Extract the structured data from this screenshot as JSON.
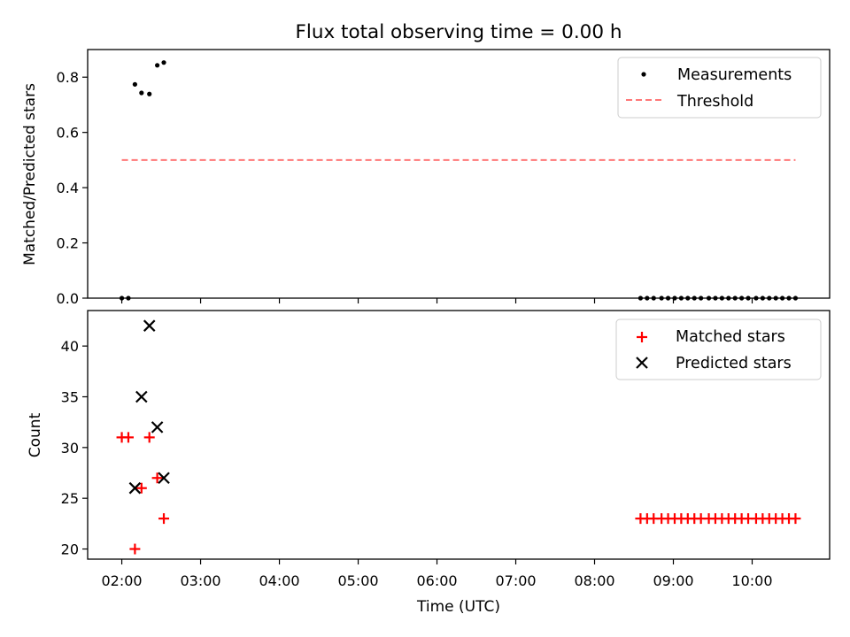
{
  "title": "Flux total observing time = 0.00 h",
  "chart_data": [
    {
      "type": "scatter",
      "ylabel": "Matched/Predicted stars",
      "ylim": [
        0,
        0.9
      ],
      "yticks": [
        "0.0",
        "0.2",
        "0.4",
        "0.6",
        "0.8"
      ],
      "legend_position": "top-right",
      "series": [
        {
          "name": "Measurements",
          "marker": "dot",
          "color": "#000000",
          "points": [
            [
              "02:00",
              0
            ],
            [
              "02:05",
              0
            ],
            [
              "02:10",
              0.774
            ],
            [
              "02:15",
              0.743
            ],
            [
              "02:21",
              0.739
            ],
            [
              "02:27",
              0.843
            ],
            [
              "02:32",
              0.853
            ],
            [
              "08:35",
              0
            ],
            [
              "08:40",
              0
            ],
            [
              "08:45",
              0
            ],
            [
              "08:51",
              0
            ],
            [
              "08:56",
              0
            ],
            [
              "09:01",
              0
            ],
            [
              "09:06",
              0
            ],
            [
              "09:11",
              0
            ],
            [
              "09:16",
              0
            ],
            [
              "09:21",
              0
            ],
            [
              "09:27",
              0
            ],
            [
              "09:32",
              0
            ],
            [
              "09:37",
              0
            ],
            [
              "09:42",
              0
            ],
            [
              "09:47",
              0
            ],
            [
              "09:52",
              0
            ],
            [
              "09:57",
              0
            ],
            [
              "10:03",
              0
            ],
            [
              "10:08",
              0
            ],
            [
              "10:13",
              0
            ],
            [
              "10:18",
              0
            ],
            [
              "10:23",
              0
            ],
            [
              "10:28",
              0
            ],
            [
              "10:33",
              0
            ]
          ]
        },
        {
          "name": "Threshold",
          "marker": "dashed-line",
          "color": "#ff7777",
          "points": [
            [
              "02:00",
              0.5
            ],
            [
              "10:33",
              0.5
            ]
          ]
        }
      ]
    },
    {
      "type": "scatter",
      "xlabel": "Time (UTC)",
      "ylabel": "Count",
      "ylim": [
        19,
        43.5
      ],
      "yticks": [
        "20",
        "25",
        "30",
        "35",
        "40"
      ],
      "xlim": [
        "01:34",
        "10:59"
      ],
      "xticks": [
        "02:00",
        "03:00",
        "04:00",
        "05:00",
        "06:00",
        "07:00",
        "08:00",
        "09:00",
        "10:00"
      ],
      "legend_position": "top-right",
      "series": [
        {
          "name": "Matched stars",
          "marker": "plus",
          "color": "#ff0000",
          "points": [
            [
              "02:00",
              31
            ],
            [
              "02:05",
              31
            ],
            [
              "02:10",
              20
            ],
            [
              "02:15",
              26
            ],
            [
              "02:21",
              31
            ],
            [
              "02:27",
              27
            ],
            [
              "02:32",
              23
            ],
            [
              "08:35",
              23
            ],
            [
              "08:40",
              23
            ],
            [
              "08:45",
              23
            ],
            [
              "08:51",
              23
            ],
            [
              "08:56",
              23
            ],
            [
              "09:01",
              23
            ],
            [
              "09:06",
              23
            ],
            [
              "09:11",
              23
            ],
            [
              "09:16",
              23
            ],
            [
              "09:21",
              23
            ],
            [
              "09:27",
              23
            ],
            [
              "09:32",
              23
            ],
            [
              "09:37",
              23
            ],
            [
              "09:42",
              23
            ],
            [
              "09:47",
              23
            ],
            [
              "09:52",
              23
            ],
            [
              "09:57",
              23
            ],
            [
              "10:03",
              23
            ],
            [
              "10:08",
              23
            ],
            [
              "10:13",
              23
            ],
            [
              "10:18",
              23
            ],
            [
              "10:23",
              23
            ],
            [
              "10:28",
              23
            ],
            [
              "10:33",
              23
            ]
          ]
        },
        {
          "name": "Predicted stars",
          "marker": "x",
          "color": "#000000",
          "points": [
            [
              "02:10",
              26
            ],
            [
              "02:15",
              35
            ],
            [
              "02:21",
              42
            ],
            [
              "02:27",
              32
            ],
            [
              "02:32",
              27
            ]
          ]
        }
      ]
    }
  ]
}
